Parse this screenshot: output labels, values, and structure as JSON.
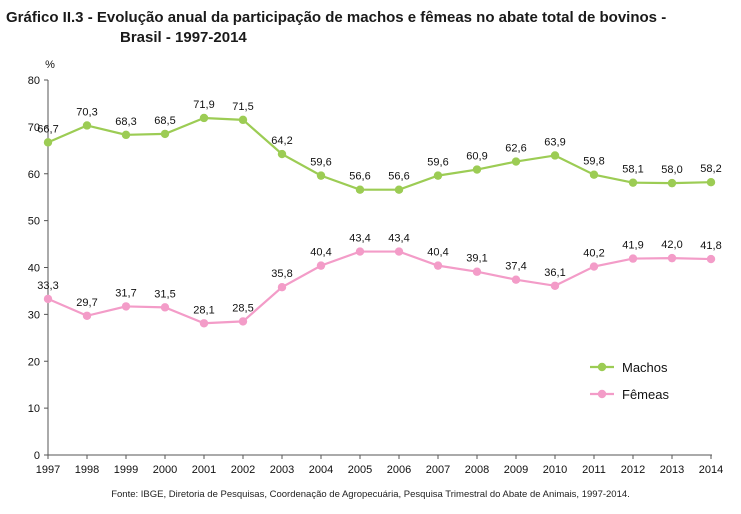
{
  "title_line1": "Gráfico II.3 - Evolução anual da participação de machos e fêmeas no abate total de bovinos -",
  "title_line2": "Brasil - 1997-2014",
  "source": "Fonte: IBGE, Diretoria de Pesquisas, Coordenação de Agropecuária, Pesquisa Trimestral do Abate de Animais, 1997-2014.",
  "chart_data": {
    "type": "line",
    "ylabel": "%",
    "ylim": [
      0,
      80
    ],
    "yticks": [
      0,
      10,
      20,
      30,
      40,
      50,
      60,
      70,
      80
    ],
    "categories": [
      "1997",
      "1998",
      "1999",
      "2000",
      "2001",
      "2002",
      "2003",
      "2004",
      "2005",
      "2006",
      "2007",
      "2008",
      "2009",
      "2010",
      "2011",
      "2012",
      "2013",
      "2014"
    ],
    "legend_position": "right",
    "grid": false,
    "series": [
      {
        "name": "Machos",
        "color": "#9ccc54",
        "values": [
          66.7,
          70.3,
          68.3,
          68.5,
          71.9,
          71.5,
          64.2,
          59.6,
          56.6,
          56.6,
          59.6,
          60.9,
          62.6,
          63.9,
          59.8,
          58.1,
          58.0,
          58.2
        ],
        "labels": [
          "66,7",
          "70,3",
          "68,3",
          "68,5",
          "71,9",
          "71,5",
          "64,2",
          "59,6",
          "56,6",
          "56,6",
          "59,6",
          "60,9",
          "62,6",
          "63,9",
          "59,8",
          "58,1",
          "58,0",
          "58,2"
        ]
      },
      {
        "name": "Fêmeas",
        "color": "#f39cc8",
        "values": [
          33.3,
          29.7,
          31.7,
          31.5,
          28.1,
          28.5,
          35.8,
          40.4,
          43.4,
          43.4,
          40.4,
          39.1,
          37.4,
          36.1,
          40.2,
          41.9,
          42.0,
          41.8
        ],
        "labels": [
          "33,3",
          "29,7",
          "31,7",
          "31,5",
          "28,1",
          "28,5",
          "35,8",
          "40,4",
          "43,4",
          "43,4",
          "40,4",
          "39,1",
          "37,4",
          "36,1",
          "40,2",
          "41,9",
          "42,0",
          "41,8"
        ]
      }
    ]
  }
}
